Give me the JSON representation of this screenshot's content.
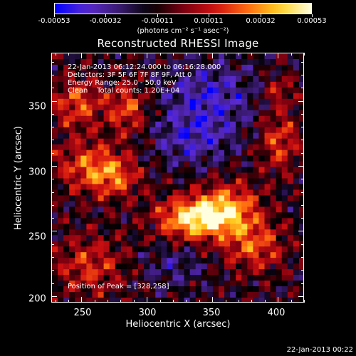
{
  "colorbar": {
    "tick_labels": [
      "-0.00053",
      "-0.00032",
      "-0.00011",
      "0.00011",
      "0.00032",
      "0.00053"
    ],
    "units": "(photons cm⁻² s⁻¹ asec⁻²)",
    "range": [
      -0.00053,
      0.00053
    ]
  },
  "title": "Reconstructed RHESSI Image",
  "info": {
    "time_range": "22-Jan-2013 06:12:24.000 to 06:16:28.000",
    "detectors": "Detectors: 3F 5F 6F 7F 8F 9F, Att 0",
    "energy_range": "Energy Range: 25.0 - 50.0 keV",
    "method": "Clean    Total counts: 1.20E+04"
  },
  "peak": "Position of Peak = [328,258]",
  "x_axis": {
    "label": "Heliocentric X (arcsec)",
    "ticks": [
      "250",
      "300",
      "350",
      "400"
    ],
    "range": [
      227,
      420
    ]
  },
  "y_axis": {
    "label": "Heliocentric Y (arcsec)",
    "ticks": [
      "200",
      "250",
      "300",
      "350"
    ],
    "range": [
      195,
      387
    ]
  },
  "timestamp": "22-Jan-2013 00:22",
  "colors": {
    "background": "#000000",
    "cmap": [
      "#0000ff",
      "#5a2ad0",
      "#3a1a70",
      "#000000",
      "#7a0010",
      "#d01010",
      "#ff6a10",
      "#ffd020",
      "#ffffe0"
    ]
  }
}
